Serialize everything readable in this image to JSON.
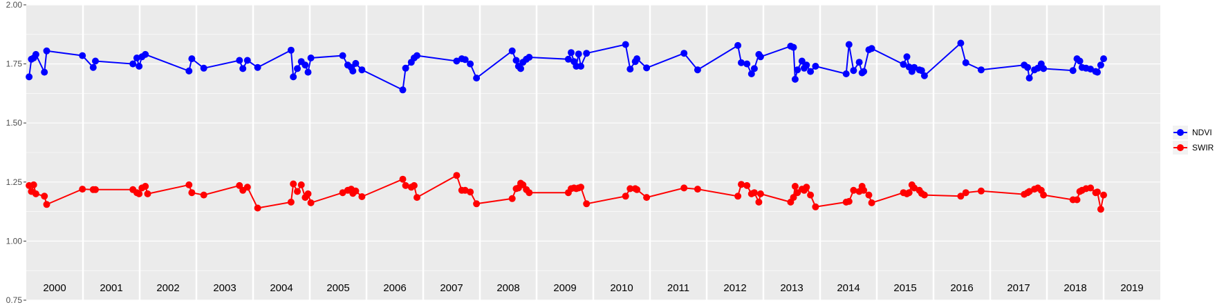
{
  "chart_data": {
    "type": "line",
    "title": "",
    "xlabel": "",
    "ylabel": "",
    "ylim": [
      0.75,
      2.0
    ],
    "y_ticks": [
      "0.75",
      "1.00",
      "1.25",
      "1.50",
      "1.75",
      "2.00"
    ],
    "y_tick_values": [
      0.75,
      1.0,
      1.25,
      1.5,
      1.75,
      2.0
    ],
    "xlim": [
      2000.0,
      2020.0
    ],
    "years": [
      "2000",
      "2001",
      "2002",
      "2003",
      "2004",
      "2005",
      "2006",
      "2007",
      "2008",
      "2009",
      "2010",
      "2011",
      "2012",
      "2013",
      "2014",
      "2015",
      "2016",
      "2017",
      "2018",
      "2019"
    ],
    "panel_background": "#ebebeb",
    "grid": true,
    "legend_position": "right",
    "series": [
      {
        "name": "NDVI",
        "color": "#0000ff",
        "points": [
          [
            2000.05,
            1.695
          ],
          [
            2000.09,
            1.77
          ],
          [
            2000.13,
            1.775
          ],
          [
            2000.17,
            1.79
          ],
          [
            2000.32,
            1.715
          ],
          [
            2000.36,
            1.805
          ],
          [
            2000.99,
            1.785
          ],
          [
            2001.18,
            1.735
          ],
          [
            2001.22,
            1.762
          ],
          [
            2001.88,
            1.75
          ],
          [
            2001.95,
            1.775
          ],
          [
            2001.99,
            1.74
          ],
          [
            2002.04,
            1.78
          ],
          [
            2002.1,
            1.79
          ],
          [
            2002.87,
            1.72
          ],
          [
            2002.92,
            1.772
          ],
          [
            2003.13,
            1.732
          ],
          [
            2003.76,
            1.765
          ],
          [
            2003.82,
            1.73
          ],
          [
            2003.9,
            1.765
          ],
          [
            2004.08,
            1.735
          ],
          [
            2004.67,
            1.808
          ],
          [
            2004.71,
            1.695
          ],
          [
            2004.78,
            1.73
          ],
          [
            2004.85,
            1.76
          ],
          [
            2004.92,
            1.745
          ],
          [
            2004.97,
            1.715
          ],
          [
            2005.02,
            1.775
          ],
          [
            2005.58,
            1.785
          ],
          [
            2005.67,
            1.745
          ],
          [
            2005.73,
            1.735
          ],
          [
            2005.76,
            1.72
          ],
          [
            2005.81,
            1.752
          ],
          [
            2005.92,
            1.725
          ],
          [
            2006.64,
            1.64
          ],
          [
            2006.69,
            1.732
          ],
          [
            2006.79,
            1.757
          ],
          [
            2006.84,
            1.775
          ],
          [
            2006.89,
            1.785
          ],
          [
            2007.59,
            1.762
          ],
          [
            2007.68,
            1.772
          ],
          [
            2007.74,
            1.768
          ],
          [
            2007.83,
            1.75
          ],
          [
            2007.94,
            1.69
          ],
          [
            2008.57,
            1.805
          ],
          [
            2008.64,
            1.765
          ],
          [
            2008.68,
            1.74
          ],
          [
            2008.72,
            1.73
          ],
          [
            2008.76,
            1.757
          ],
          [
            2008.82,
            1.77
          ],
          [
            2008.87,
            1.778
          ],
          [
            2009.56,
            1.77
          ],
          [
            2009.61,
            1.798
          ],
          [
            2009.66,
            1.76
          ],
          [
            2009.7,
            1.74
          ],
          [
            2009.74,
            1.792
          ],
          [
            2009.78,
            1.74
          ],
          [
            2009.88,
            1.795
          ],
          [
            2010.57,
            1.832
          ],
          [
            2010.65,
            1.728
          ],
          [
            2010.74,
            1.76
          ],
          [
            2010.77,
            1.772
          ],
          [
            2010.94,
            1.733
          ],
          [
            2011.6,
            1.795
          ],
          [
            2011.84,
            1.725
          ],
          [
            2012.55,
            1.828
          ],
          [
            2012.61,
            1.755
          ],
          [
            2012.71,
            1.75
          ],
          [
            2012.79,
            1.708
          ],
          [
            2012.84,
            1.73
          ],
          [
            2012.92,
            1.79
          ],
          [
            2012.95,
            1.78
          ],
          [
            2013.48,
            1.825
          ],
          [
            2013.53,
            1.82
          ],
          [
            2013.56,
            1.685
          ],
          [
            2013.6,
            1.725
          ],
          [
            2013.68,
            1.762
          ],
          [
            2013.72,
            1.732
          ],
          [
            2013.76,
            1.745
          ],
          [
            2013.83,
            1.718
          ],
          [
            2013.92,
            1.74
          ],
          [
            2014.46,
            1.708
          ],
          [
            2014.51,
            1.832
          ],
          [
            2014.59,
            1.722
          ],
          [
            2014.69,
            1.757
          ],
          [
            2014.74,
            1.712
          ],
          [
            2014.77,
            1.718
          ],
          [
            2014.86,
            1.81
          ],
          [
            2014.91,
            1.815
          ],
          [
            2015.47,
            1.748
          ],
          [
            2015.53,
            1.78
          ],
          [
            2015.57,
            1.737
          ],
          [
            2015.62,
            1.718
          ],
          [
            2015.66,
            1.735
          ],
          [
            2015.75,
            1.725
          ],
          [
            2015.79,
            1.722
          ],
          [
            2015.84,
            1.7
          ],
          [
            2016.48,
            1.838
          ],
          [
            2016.57,
            1.755
          ],
          [
            2016.84,
            1.725
          ],
          [
            2017.6,
            1.745
          ],
          [
            2017.66,
            1.735
          ],
          [
            2017.69,
            1.69
          ],
          [
            2017.78,
            1.725
          ],
          [
            2017.84,
            1.732
          ],
          [
            2017.9,
            1.75
          ],
          [
            2017.94,
            1.73
          ],
          [
            2018.46,
            1.722
          ],
          [
            2018.53,
            1.772
          ],
          [
            2018.58,
            1.762
          ],
          [
            2018.62,
            1.735
          ],
          [
            2018.69,
            1.732
          ],
          [
            2018.77,
            1.728
          ],
          [
            2018.86,
            1.718
          ],
          [
            2018.89,
            1.715
          ],
          [
            2018.95,
            1.745
          ],
          [
            2019.0,
            1.772
          ]
        ]
      },
      {
        "name": "SWIR",
        "color": "#ff0000",
        "points": [
          [
            2000.05,
            1.235
          ],
          [
            2000.09,
            1.21
          ],
          [
            2000.13,
            1.238
          ],
          [
            2000.17,
            1.2
          ],
          [
            2000.32,
            1.19
          ],
          [
            2000.36,
            1.155
          ],
          [
            2000.99,
            1.22
          ],
          [
            2001.18,
            1.218
          ],
          [
            2001.22,
            1.218
          ],
          [
            2001.88,
            1.218
          ],
          [
            2001.95,
            1.205
          ],
          [
            2001.99,
            1.2
          ],
          [
            2002.04,
            1.225
          ],
          [
            2002.1,
            1.232
          ],
          [
            2002.14,
            1.2
          ],
          [
            2002.87,
            1.238
          ],
          [
            2002.92,
            1.205
          ],
          [
            2003.13,
            1.195
          ],
          [
            2003.76,
            1.235
          ],
          [
            2003.82,
            1.215
          ],
          [
            2003.9,
            1.228
          ],
          [
            2004.08,
            1.14
          ],
          [
            2004.67,
            1.165
          ],
          [
            2004.71,
            1.242
          ],
          [
            2004.78,
            1.21
          ],
          [
            2004.85,
            1.238
          ],
          [
            2004.92,
            1.185
          ],
          [
            2004.97,
            1.2
          ],
          [
            2005.02,
            1.162
          ],
          [
            2005.58,
            1.205
          ],
          [
            2005.67,
            1.215
          ],
          [
            2005.73,
            1.22
          ],
          [
            2005.76,
            1.202
          ],
          [
            2005.81,
            1.212
          ],
          [
            2005.92,
            1.188
          ],
          [
            2006.64,
            1.262
          ],
          [
            2006.69,
            1.235
          ],
          [
            2006.79,
            1.228
          ],
          [
            2006.84,
            1.235
          ],
          [
            2006.89,
            1.185
          ],
          [
            2007.59,
            1.278
          ],
          [
            2007.68,
            1.215
          ],
          [
            2007.74,
            1.215
          ],
          [
            2007.83,
            1.208
          ],
          [
            2007.94,
            1.158
          ],
          [
            2008.57,
            1.18
          ],
          [
            2008.64,
            1.222
          ],
          [
            2008.68,
            1.225
          ],
          [
            2008.72,
            1.245
          ],
          [
            2008.76,
            1.238
          ],
          [
            2008.82,
            1.218
          ],
          [
            2008.87,
            1.205
          ],
          [
            2009.56,
            1.205
          ],
          [
            2009.61,
            1.222
          ],
          [
            2009.66,
            1.225
          ],
          [
            2009.7,
            1.222
          ],
          [
            2009.74,
            1.225
          ],
          [
            2009.78,
            1.228
          ],
          [
            2009.88,
            1.158
          ],
          [
            2010.57,
            1.19
          ],
          [
            2010.65,
            1.222
          ],
          [
            2010.74,
            1.222
          ],
          [
            2010.77,
            1.218
          ],
          [
            2010.94,
            1.185
          ],
          [
            2011.6,
            1.225
          ],
          [
            2011.84,
            1.22
          ],
          [
            2012.55,
            1.19
          ],
          [
            2012.61,
            1.24
          ],
          [
            2012.71,
            1.235
          ],
          [
            2012.79,
            1.2
          ],
          [
            2012.84,
            1.205
          ],
          [
            2012.92,
            1.165
          ],
          [
            2012.95,
            1.2
          ],
          [
            2013.48,
            1.165
          ],
          [
            2013.53,
            1.185
          ],
          [
            2013.56,
            1.232
          ],
          [
            2013.6,
            1.205
          ],
          [
            2013.68,
            1.22
          ],
          [
            2013.72,
            1.215
          ],
          [
            2013.76,
            1.228
          ],
          [
            2013.83,
            1.195
          ],
          [
            2013.92,
            1.145
          ],
          [
            2014.46,
            1.165
          ],
          [
            2014.51,
            1.168
          ],
          [
            2014.59,
            1.215
          ],
          [
            2014.69,
            1.21
          ],
          [
            2014.74,
            1.232
          ],
          [
            2014.77,
            1.215
          ],
          [
            2014.86,
            1.195
          ],
          [
            2014.91,
            1.162
          ],
          [
            2015.47,
            1.205
          ],
          [
            2015.53,
            1.2
          ],
          [
            2015.57,
            1.205
          ],
          [
            2015.62,
            1.238
          ],
          [
            2015.66,
            1.225
          ],
          [
            2015.75,
            1.215
          ],
          [
            2015.79,
            1.202
          ],
          [
            2015.84,
            1.195
          ],
          [
            2016.48,
            1.19
          ],
          [
            2016.57,
            1.205
          ],
          [
            2016.84,
            1.212
          ],
          [
            2017.6,
            1.198
          ],
          [
            2017.66,
            1.205
          ],
          [
            2017.69,
            1.21
          ],
          [
            2017.78,
            1.22
          ],
          [
            2017.84,
            1.225
          ],
          [
            2017.9,
            1.215
          ],
          [
            2017.94,
            1.195
          ],
          [
            2018.46,
            1.175
          ],
          [
            2018.53,
            1.175
          ],
          [
            2018.58,
            1.21
          ],
          [
            2018.62,
            1.215
          ],
          [
            2018.69,
            1.222
          ],
          [
            2018.77,
            1.225
          ],
          [
            2018.86,
            1.205
          ],
          [
            2018.89,
            1.208
          ],
          [
            2018.95,
            1.135
          ],
          [
            2019.0,
            1.195
          ]
        ]
      }
    ]
  }
}
